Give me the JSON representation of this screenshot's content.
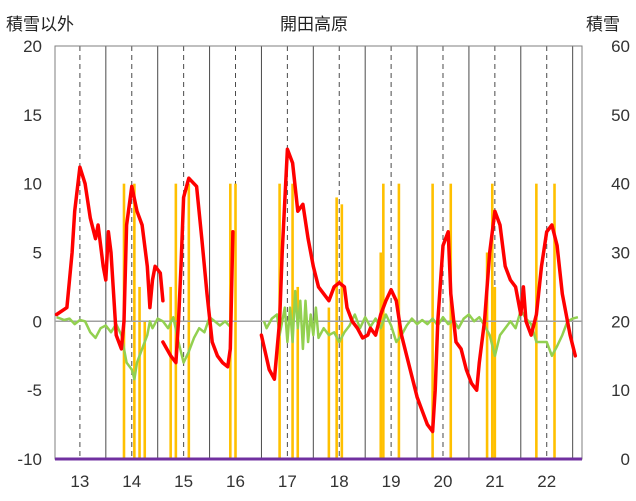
{
  "chart_data": {
    "type": "line",
    "title": "開田高原",
    "left_axis_label": "積雪以外",
    "right_axis_label": "積雪",
    "y_left": {
      "min": -10,
      "max": 20,
      "ticks": [
        -10,
        -5,
        0,
        5,
        10,
        15,
        20
      ]
    },
    "y_right": {
      "min": 0,
      "max": 60,
      "ticks": [
        0,
        10,
        20,
        30,
        40,
        50,
        60
      ]
    },
    "x_range": [
      12.52,
      22.68
    ],
    "x_ticks": [
      13,
      14,
      15,
      16,
      17,
      18,
      19,
      20,
      21,
      22
    ],
    "x_tick_labels": [
      "13",
      "14",
      "15",
      "16",
      "17",
      "18",
      "19",
      "20",
      "21",
      "22"
    ],
    "grid": "dashed vertical at each label, solid vertical between",
    "colors": {
      "snow": "#ffc000",
      "red": "#ff0000",
      "green": "#92d050",
      "purple": "#7030a0",
      "gray": "#a0a0a0"
    },
    "series": [
      {
        "axis": "right",
        "type": "bar",
        "points": [
          [
            13.85,
            40
          ],
          [
            14.05,
            40
          ],
          [
            14.15,
            25
          ],
          [
            14.25,
            20
          ],
          [
            14.75,
            25
          ],
          [
            14.85,
            40
          ],
          [
            15.1,
            40
          ],
          [
            15.9,
            40
          ],
          [
            16.0,
            40
          ],
          [
            16.85,
            40
          ],
          [
            17.1,
            40
          ],
          [
            17.2,
            25
          ],
          [
            17.8,
            22
          ],
          [
            17.95,
            38
          ],
          [
            18.05,
            37
          ],
          [
            18.8,
            30
          ],
          [
            18.85,
            40
          ],
          [
            19.15,
            40
          ],
          [
            19.8,
            40
          ],
          [
            20.15,
            40
          ],
          [
            20.85,
            30
          ],
          [
            20.95,
            40
          ],
          [
            21.0,
            25
          ],
          [
            21.8,
            40
          ],
          [
            22.15,
            40
          ]
        ]
      },
      {
        "axis": "left",
        "type": "line",
        "segments": [
          [
            [
              12.55,
              0.5
            ],
            [
              12.75,
              1.0
            ],
            [
              12.85,
              5.0
            ],
            [
              12.9,
              8.0
            ],
            [
              13.0,
              11.2
            ],
            [
              13.1,
              10.0
            ],
            [
              13.2,
              7.5
            ],
            [
              13.3,
              6.0
            ],
            [
              13.35,
              7.0
            ],
            [
              13.45,
              4.0
            ],
            [
              13.5,
              3.0
            ],
            [
              13.55,
              6.5
            ],
            [
              13.6,
              5.0
            ],
            [
              13.65,
              2.0
            ],
            [
              13.7,
              -1.0
            ],
            [
              13.8,
              -2.0
            ],
            [
              13.85,
              0.0
            ],
            [
              13.9,
              7.0
            ],
            [
              14.0,
              9.8
            ],
            [
              14.1,
              8.0
            ],
            [
              14.2,
              7.0
            ],
            [
              14.3,
              4.0
            ],
            [
              14.35,
              1.0
            ],
            [
              14.4,
              3.0
            ],
            [
              14.45,
              4.0
            ],
            [
              14.55,
              3.5
            ],
            [
              14.6,
              1.5
            ]
          ],
          [
            [
              14.6,
              -1.5
            ],
            [
              14.75,
              -2.5
            ],
            [
              14.85,
              -3.0
            ],
            [
              14.9,
              0.0
            ],
            [
              14.95,
              4.0
            ],
            [
              15.0,
              9.0
            ],
            [
              15.1,
              10.4
            ],
            [
              15.25,
              9.8
            ],
            [
              15.35,
              6.0
            ],
            [
              15.45,
              2.0
            ],
            [
              15.55,
              -1.5
            ],
            [
              15.65,
              -2.5
            ],
            [
              15.75,
              -3.0
            ],
            [
              15.85,
              -3.3
            ],
            [
              15.9,
              -2.0
            ],
            [
              15.95,
              6.5
            ]
          ],
          [
            [
              16.5,
              -1.0
            ],
            [
              16.65,
              -3.5
            ],
            [
              16.75,
              -4.2
            ],
            [
              16.85,
              0.0
            ],
            [
              16.9,
              5.0
            ],
            [
              17.0,
              12.5
            ],
            [
              17.1,
              11.5
            ],
            [
              17.2,
              8.0
            ],
            [
              17.3,
              8.5
            ],
            [
              17.4,
              6.0
            ],
            [
              17.5,
              4.0
            ],
            [
              17.6,
              2.5
            ],
            [
              17.7,
              2.0
            ],
            [
              17.8,
              1.5
            ],
            [
              17.9,
              2.5
            ],
            [
              18.0,
              2.8
            ],
            [
              18.1,
              2.5
            ],
            [
              18.15,
              1.0
            ],
            [
              18.25,
              0.0
            ],
            [
              18.35,
              -0.5
            ],
            [
              18.45,
              -1.2
            ],
            [
              18.55,
              -1.0
            ],
            [
              18.6,
              -0.5
            ],
            [
              18.7,
              -1.0
            ],
            [
              18.8,
              0.5
            ],
            [
              18.9,
              1.5
            ],
            [
              19.0,
              2.3
            ],
            [
              19.1,
              1.5
            ],
            [
              19.2,
              -1.0
            ],
            [
              19.3,
              -2.5
            ],
            [
              19.4,
              -4.0
            ],
            [
              19.5,
              -5.5
            ],
            [
              19.6,
              -6.5
            ],
            [
              19.7,
              -7.5
            ],
            [
              19.8,
              -8.0
            ],
            [
              19.85,
              -5.0
            ],
            [
              19.9,
              0.0
            ],
            [
              20.0,
              5.5
            ],
            [
              20.1,
              6.5
            ],
            [
              20.15,
              2.0
            ],
            [
              20.25,
              -1.5
            ],
            [
              20.35,
              -2.0
            ],
            [
              20.45,
              -3.5
            ],
            [
              20.55,
              -4.5
            ],
            [
              20.65,
              -5.0
            ],
            [
              20.7,
              -3.0
            ],
            [
              20.8,
              0.0
            ],
            [
              20.9,
              5.0
            ],
            [
              21.0,
              8.0
            ],
            [
              21.1,
              7.0
            ],
            [
              21.2,
              4.0
            ],
            [
              21.3,
              3.0
            ],
            [
              21.4,
              2.5
            ],
            [
              21.5,
              0.5
            ],
            [
              21.55,
              2.5
            ],
            [
              21.6,
              0.0
            ],
            [
              21.7,
              -1.0
            ],
            [
              21.8,
              0.5
            ],
            [
              21.9,
              4.0
            ],
            [
              22.0,
              6.5
            ],
            [
              22.1,
              7.0
            ],
            [
              22.2,
              5.5
            ],
            [
              22.3,
              2.0
            ],
            [
              22.45,
              -1.0
            ],
            [
              22.55,
              -2.5
            ]
          ]
        ]
      },
      {
        "axis": "left",
        "type": "line",
        "segments": [
          [
            [
              12.55,
              0.3
            ],
            [
              12.7,
              0.1
            ],
            [
              12.8,
              0.2
            ],
            [
              12.9,
              -0.2
            ],
            [
              13.0,
              0.1
            ],
            [
              13.1,
              0.0
            ],
            [
              13.2,
              -0.8
            ],
            [
              13.3,
              -1.2
            ],
            [
              13.4,
              -0.5
            ],
            [
              13.5,
              -0.3
            ],
            [
              13.6,
              -0.8
            ],
            [
              13.7,
              -0.2
            ],
            [
              13.8,
              -1.0
            ],
            [
              13.85,
              -2.0
            ],
            [
              13.9,
              -3.0
            ],
            [
              14.0,
              -3.5
            ],
            [
              14.05,
              -4.2
            ],
            [
              14.1,
              -3.0
            ],
            [
              14.2,
              -2.0
            ],
            [
              14.3,
              -1.0
            ],
            [
              14.35,
              0.0
            ],
            [
              14.4,
              -0.5
            ],
            [
              14.5,
              0.2
            ],
            [
              14.6,
              0.0
            ],
            [
              14.7,
              -0.5
            ],
            [
              14.8,
              0.3
            ],
            [
              14.9,
              -1.5
            ],
            [
              15.0,
              -3.0
            ],
            [
              15.1,
              -2.2
            ],
            [
              15.2,
              -1.2
            ],
            [
              15.3,
              -0.5
            ],
            [
              15.4,
              -0.8
            ],
            [
              15.5,
              0.3
            ],
            [
              15.6,
              0.0
            ],
            [
              15.7,
              -0.3
            ],
            [
              15.8,
              0.0
            ],
            [
              15.9,
              -0.4
            ]
          ],
          [
            [
              16.55,
              0.0
            ],
            [
              16.6,
              -0.5
            ],
            [
              16.7,
              0.2
            ],
            [
              16.8,
              0.5
            ],
            [
              16.85,
              -1.0
            ],
            [
              16.95,
              1.0
            ],
            [
              17.0,
              -1.5
            ],
            [
              17.05,
              1.0
            ],
            [
              17.1,
              -1.5
            ],
            [
              17.15,
              2.2
            ],
            [
              17.2,
              -0.5
            ],
            [
              17.25,
              1.5
            ],
            [
              17.3,
              -2.0
            ],
            [
              17.35,
              1.5
            ],
            [
              17.4,
              -1.5
            ],
            [
              17.45,
              0.5
            ],
            [
              17.5,
              -1.0
            ],
            [
              17.55,
              1.0
            ],
            [
              17.6,
              -1.2
            ],
            [
              17.7,
              -0.5
            ],
            [
              17.8,
              -1.0
            ],
            [
              17.9,
              -0.8
            ],
            [
              18.0,
              -1.5
            ],
            [
              18.1,
              -0.8
            ],
            [
              18.2,
              -0.3
            ],
            [
              18.3,
              0.5
            ],
            [
              18.4,
              -0.5
            ],
            [
              18.5,
              0.3
            ],
            [
              18.6,
              -0.4
            ],
            [
              18.7,
              0.2
            ],
            [
              18.8,
              -0.5
            ],
            [
              18.9,
              0.5
            ],
            [
              19.0,
              -0.3
            ],
            [
              19.1,
              -1.5
            ],
            [
              19.2,
              -1.0
            ],
            [
              19.3,
              -0.3
            ],
            [
              19.4,
              0.2
            ],
            [
              19.5,
              -0.2
            ],
            [
              19.6,
              0.1
            ],
            [
              19.7,
              -0.2
            ],
            [
              19.8,
              0.2
            ],
            [
              19.9,
              -0.3
            ],
            [
              20.0,
              0.3
            ],
            [
              20.1,
              -0.2
            ],
            [
              20.2,
              0.1
            ],
            [
              20.3,
              -0.5
            ],
            [
              20.4,
              0.2
            ],
            [
              20.5,
              0.5
            ],
            [
              20.6,
              0.0
            ],
            [
              20.7,
              0.3
            ],
            [
              20.8,
              -0.3
            ],
            [
              20.9,
              -1.0
            ],
            [
              21.0,
              -2.5
            ],
            [
              21.1,
              -1.0
            ],
            [
              21.2,
              -0.5
            ],
            [
              21.3,
              0.0
            ],
            [
              21.4,
              -0.5
            ],
            [
              21.5,
              0.8
            ],
            [
              21.6,
              0.2
            ],
            [
              21.7,
              -0.2
            ],
            [
              21.8,
              -1.5
            ],
            [
              22.0,
              -1.5
            ],
            [
              22.1,
              -2.5
            ],
            [
              22.2,
              -1.8
            ],
            [
              22.3,
              -1.0
            ],
            [
              22.4,
              0.0
            ],
            [
              22.5,
              0.2
            ],
            [
              22.6,
              0.3
            ]
          ]
        ]
      },
      {
        "axis": "left",
        "type": "line",
        "points": [
          [
            12.52,
            0.0
          ],
          [
            22.68,
            0.0
          ]
        ]
      },
      {
        "axis": "left",
        "type": "line",
        "points": [
          [
            12.52,
            -10.0
          ],
          [
            22.68,
            -10.0
          ]
        ]
      }
    ]
  }
}
